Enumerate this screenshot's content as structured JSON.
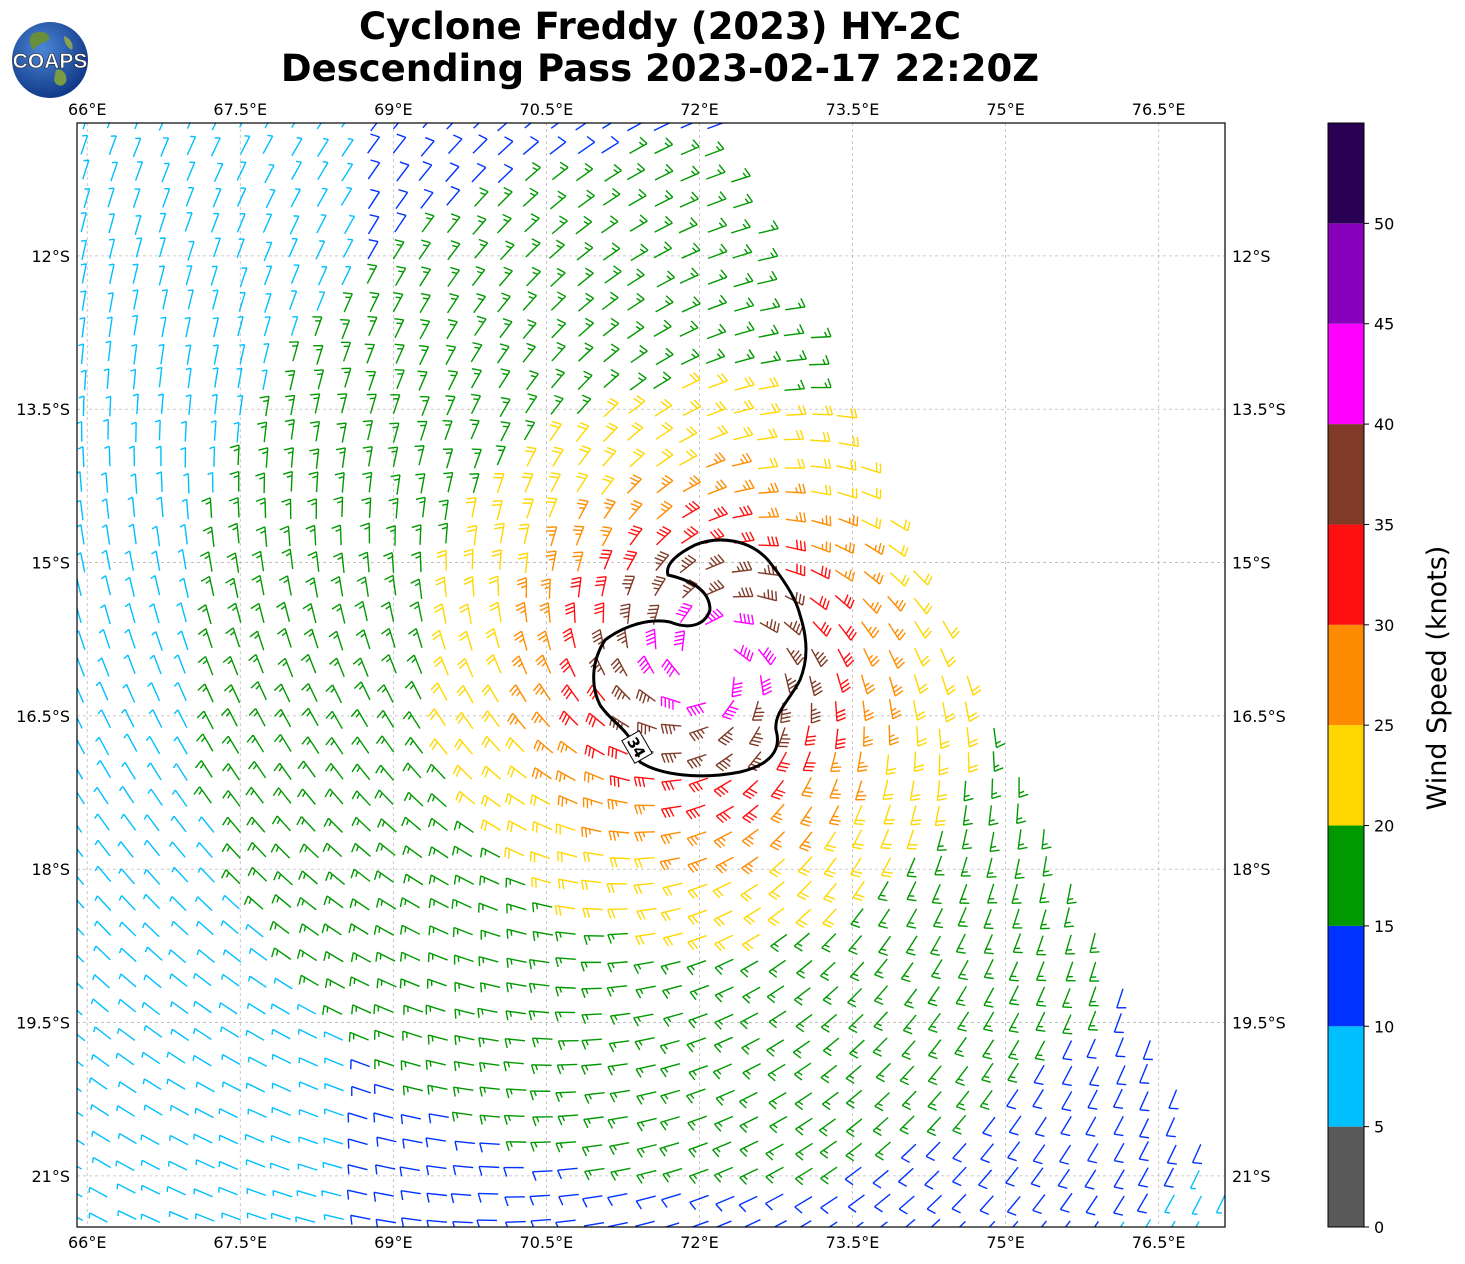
{
  "title": {
    "line1": "Cyclone Freddy (2023) HY-2C",
    "line2": "Descending Pass 2023-02-17 22:20Z"
  },
  "logo": {
    "text": "COAPS",
    "icon": "globe-icon"
  },
  "map": {
    "lon_ticks": [
      "66°E",
      "67.5°E",
      "69°E",
      "70.5°E",
      "72°E",
      "73.5°E",
      "75°E",
      "76.5°E"
    ],
    "lat_ticks": [
      "12°S",
      "13.5°S",
      "15°S",
      "16.5°S",
      "18°S",
      "19.5°S",
      "21°S"
    ],
    "lon_range": [
      65.9,
      77.15
    ],
    "lat_range": [
      10.7,
      21.5
    ],
    "center": {
      "lon": 72.1,
      "lat": 16.0
    },
    "contour_label": "34",
    "grid": true
  },
  "colorbar": {
    "label": "Wind Speed (knots)",
    "ticks": [
      "0",
      "5",
      "10",
      "15",
      "20",
      "25",
      "30",
      "35",
      "40",
      "45",
      "50"
    ],
    "bins": [
      {
        "min": 0,
        "max": 5,
        "color": "#595959"
      },
      {
        "min": 5,
        "max": 10,
        "color": "#00bfff"
      },
      {
        "min": 10,
        "max": 15,
        "color": "#0033ff"
      },
      {
        "min": 15,
        "max": 20,
        "color": "#009900"
      },
      {
        "min": 20,
        "max": 25,
        "color": "#ffd700"
      },
      {
        "min": 25,
        "max": 30,
        "color": "#ff8c00"
      },
      {
        "min": 30,
        "max": 35,
        "color": "#ff1010"
      },
      {
        "min": 35,
        "max": 40,
        "color": "#7f3b28"
      },
      {
        "min": 40,
        "max": 45,
        "color": "#ff00ff"
      },
      {
        "min": 45,
        "max": 50,
        "color": "#8800bb"
      },
      {
        "min": 50,
        "max": 55,
        "color": "#2a0055"
      }
    ]
  },
  "colors": {
    "cyan": "#00bfff",
    "swath_cyan": "#00b0e0"
  }
}
